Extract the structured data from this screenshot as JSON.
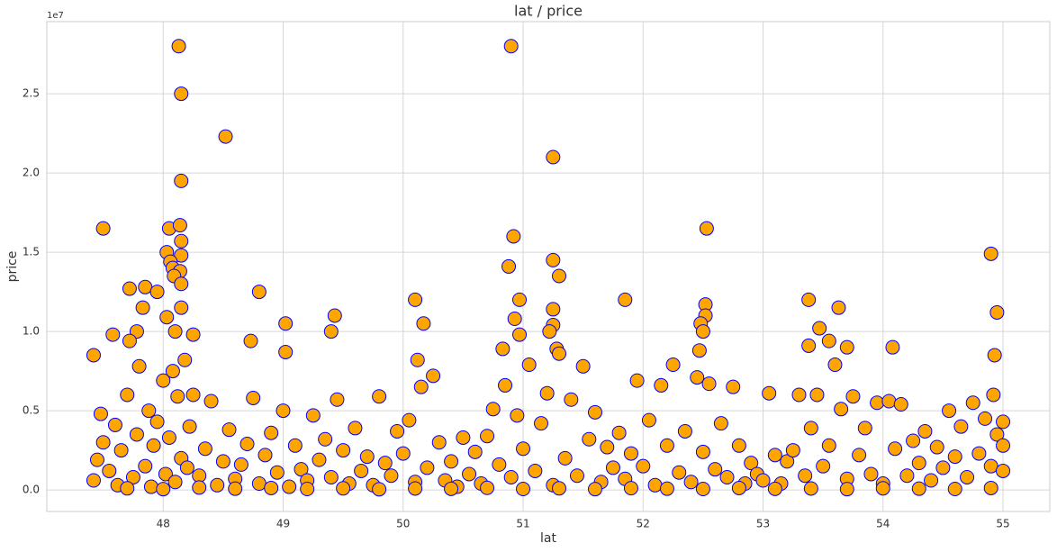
{
  "chart_data": {
    "type": "scatter",
    "title": "lat / price",
    "x_label": "lat",
    "y_label": "price",
    "y_offset_label": "1e7",
    "color": "#ffa500",
    "edgecolor": "#0000ff",
    "grid": true,
    "xlim": [
      47.03,
      55.39
    ],
    "ylim": [
      -1360000,
      29550000
    ],
    "xticks": [
      48,
      49,
      50,
      51,
      52,
      53,
      54,
      55
    ],
    "yticks": [
      {
        "value": 0,
        "label": "0.0"
      },
      {
        "value": 5000000,
        "label": "0.5"
      },
      {
        "value": 10000000,
        "label": "1.0"
      },
      {
        "value": 15000000,
        "label": "1.5"
      },
      {
        "value": 20000000,
        "label": "2.0"
      },
      {
        "value": 25000000,
        "label": "2.5"
      }
    ],
    "x": [
      48.13,
      50.9,
      48.15,
      48.52,
      51.25,
      48.15,
      47.5,
      48.05,
      48.14,
      52.53,
      50.92,
      48.15,
      48.03,
      54.9,
      48.15,
      51.25,
      48.06,
      50.88,
      48.08,
      48.14,
      51.3,
      48.09,
      47.85,
      47.72,
      48.15,
      47.95,
      48.8,
      50.1,
      50.97,
      51.85,
      53.38,
      52.52,
      48.15,
      47.83,
      51.25,
      53.63,
      54.95,
      49.43,
      48.03,
      52.52,
      50.93,
      52.48,
      49.02,
      50.17,
      51.25,
      53.47,
      48.1,
      49.4,
      47.78,
      50.97,
      47.58,
      48.25,
      51.22,
      52.5,
      53.55,
      47.72,
      48.73,
      53.38,
      53.7,
      54.08,
      51.28,
      50.83,
      47.42,
      49.02,
      54.93,
      52.47,
      47.42,
      47.45,
      47.48,
      47.5,
      47.55,
      47.6,
      47.62,
      47.65,
      47.7,
      47.75,
      47.78,
      47.8,
      47.85,
      47.88,
      47.9,
      47.92,
      47.95,
      48.0,
      48.02,
      48.05,
      48.08,
      48.1,
      48.12,
      48.15,
      48.18,
      48.2,
      48.22,
      48.25,
      48.3,
      48.35,
      48.4,
      48.45,
      48.5,
      48.55,
      48.6,
      48.65,
      48.7,
      48.75,
      48.8,
      48.85,
      48.9,
      48.95,
      49.0,
      49.05,
      49.1,
      49.15,
      49.2,
      49.25,
      49.3,
      49.35,
      49.4,
      49.45,
      49.5,
      49.55,
      49.6,
      49.65,
      49.7,
      49.75,
      49.8,
      49.85,
      49.9,
      49.95,
      50.0,
      50.05,
      50.1,
      50.12,
      50.15,
      50.2,
      50.25,
      50.3,
      50.35,
      50.4,
      50.45,
      50.5,
      50.55,
      50.6,
      50.65,
      50.7,
      50.75,
      50.8,
      50.85,
      50.9,
      50.95,
      51.0,
      51.05,
      51.1,
      51.15,
      51.2,
      51.25,
      51.3,
      51.35,
      51.4,
      51.45,
      51.5,
      51.55,
      51.6,
      51.65,
      51.7,
      51.75,
      51.8,
      51.85,
      51.9,
      51.95,
      52.0,
      52.05,
      52.1,
      52.15,
      52.2,
      52.25,
      52.3,
      52.35,
      52.4,
      52.45,
      52.5,
      52.55,
      52.6,
      52.65,
      52.7,
      52.75,
      52.8,
      52.85,
      52.9,
      52.95,
      53.0,
      53.05,
      53.1,
      53.15,
      53.2,
      53.25,
      53.3,
      53.35,
      53.4,
      53.45,
      53.5,
      53.55,
      53.6,
      53.65,
      53.7,
      53.75,
      53.8,
      53.85,
      53.9,
      53.95,
      54.0,
      54.05,
      54.1,
      54.15,
      54.2,
      54.25,
      54.3,
      54.35,
      54.4,
      54.45,
      54.5,
      54.55,
      54.6,
      54.65,
      54.7,
      54.75,
      54.8,
      54.85,
      54.9,
      54.92,
      54.95,
      55.0,
      55.0,
      55.0,
      47.7,
      48.0,
      48.3,
      48.6,
      48.9,
      49.2,
      49.5,
      49.8,
      50.1,
      50.4,
      50.7,
      51.0,
      51.3,
      51.6,
      51.9,
      52.2,
      52.5,
      52.8,
      53.1,
      53.4,
      53.7,
      54.0,
      54.3,
      54.6,
      54.9
    ],
    "values": [
      28000000,
      28000000,
      25000000,
      22300000,
      21000000,
      19500000,
      16500000,
      16500000,
      16700000,
      16500000,
      16000000,
      15700000,
      15000000,
      14900000,
      14800000,
      14500000,
      14400000,
      14100000,
      14000000,
      13800000,
      13500000,
      13500000,
      12800000,
      12700000,
      13000000,
      12500000,
      12500000,
      12000000,
      12000000,
      12000000,
      12000000,
      11700000,
      11500000,
      11500000,
      11400000,
      11500000,
      11200000,
      11000000,
      10900000,
      11000000,
      10800000,
      10500000,
      10500000,
      10500000,
      10400000,
      10200000,
      10000000,
      10000000,
      10000000,
      9800000,
      9800000,
      9800000,
      10000000,
      10000000,
      9400000,
      9400000,
      9400000,
      9100000,
      9000000,
      9000000,
      8900000,
      8900000,
      8500000,
      8700000,
      8500000,
      8800000,
      600000,
      1900000,
      4800000,
      3000000,
      1200000,
      4100000,
      300000,
      2500000,
      6000000,
      800000,
      3500000,
      7800000,
      1500000,
      5000000,
      200000,
      2800000,
      4300000,
      6900000,
      1000000,
      3300000,
      7500000,
      500000,
      5900000,
      2000000,
      8200000,
      1400000,
      4000000,
      6000000,
      900000,
      2600000,
      5600000,
      300000,
      1800000,
      3800000,
      700000,
      1600000,
      2900000,
      5800000,
      400000,
      2200000,
      3600000,
      1100000,
      5000000,
      200000,
      2800000,
      1300000,
      600000,
      4700000,
      1900000,
      3200000,
      800000,
      5700000,
      2500000,
      400000,
      3900000,
      1200000,
      2100000,
      300000,
      5900000,
      1700000,
      900000,
      3700000,
      2300000,
      4400000,
      500000,
      8200000,
      6500000,
      1400000,
      7200000,
      3000000,
      600000,
      1800000,
      200000,
      3300000,
      1000000,
      2400000,
      400000,
      3400000,
      5100000,
      1600000,
      6600000,
      800000,
      4700000,
      2600000,
      7900000,
      1200000,
      4200000,
      6100000,
      300000,
      8600000,
      2000000,
      5700000,
      900000,
      7800000,
      3200000,
      4900000,
      500000,
      2700000,
      1400000,
      3600000,
      700000,
      2300000,
      6900000,
      1500000,
      4400000,
      300000,
      6600000,
      2800000,
      7900000,
      1100000,
      3700000,
      500000,
      7100000,
      2400000,
      6700000,
      1300000,
      4200000,
      800000,
      6500000,
      2800000,
      400000,
      1700000,
      1000000,
      600000,
      6100000,
      2200000,
      400000,
      1800000,
      2500000,
      6000000,
      900000,
      3900000,
      6000000,
      1500000,
      2800000,
      7900000,
      5100000,
      700000,
      5900000,
      2200000,
      3900000,
      1000000,
      5500000,
      400000,
      5600000,
      2600000,
      5400000,
      900000,
      3100000,
      1700000,
      3700000,
      600000,
      2700000,
      1400000,
      5000000,
      2100000,
      4000000,
      800000,
      5500000,
      2300000,
      4500000,
      1500000,
      6000000,
      3500000,
      4300000,
      1200000,
      2800000,
      100000,
      50000,
      150000,
      80000,
      120000,
      60000,
      100000,
      40000,
      90000,
      70000,
      130000,
      60000,
      100000,
      50000,
      110000,
      80000,
      60000,
      120000,
      70000,
      90000,
      50000,
      100000,
      80000,
      60000,
      120000
    ]
  }
}
